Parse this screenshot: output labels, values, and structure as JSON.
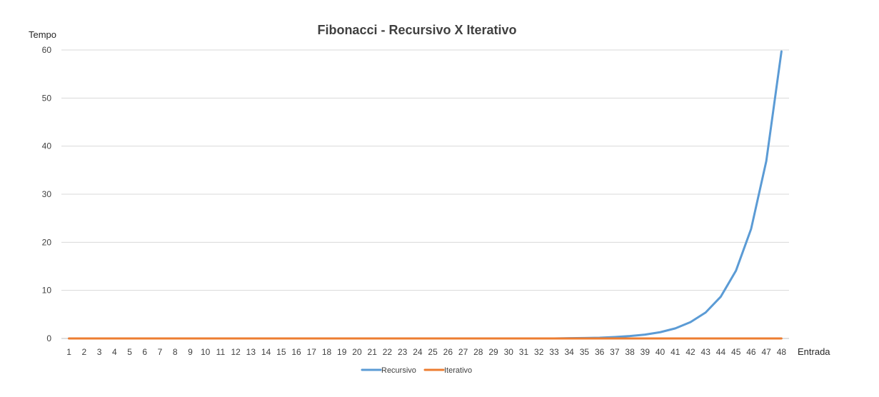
{
  "chart_data": {
    "type": "line",
    "title": "Fibonacci - Recursivo X Iterativo",
    "xlabel": "Entrada",
    "ylabel": "Tempo",
    "ylim": [
      0,
      60
    ],
    "yticks": [
      0,
      10,
      20,
      30,
      40,
      50,
      60
    ],
    "grid": true,
    "legend_position": "bottom",
    "categories": [
      "1",
      "2",
      "3",
      "4",
      "5",
      "6",
      "7",
      "8",
      "9",
      "10",
      "11",
      "12",
      "13",
      "14",
      "15",
      "16",
      "17",
      "18",
      "19",
      "20",
      "21",
      "22",
      "23",
      "24",
      "25",
      "26",
      "27",
      "28",
      "29",
      "30",
      "31",
      "32",
      "33",
      "34",
      "35",
      "36",
      "37",
      "38",
      "39",
      "40",
      "41",
      "42",
      "43",
      "44",
      "45",
      "46",
      "47",
      "48"
    ],
    "series": [
      {
        "name": "Recursivo",
        "color": "#5B9BD5",
        "values": [
          0,
          0,
          0,
          0,
          0,
          0,
          0,
          0,
          0,
          0,
          0,
          0,
          0,
          0,
          0,
          0,
          0,
          0,
          0,
          0,
          0,
          0,
          0,
          0,
          0,
          0,
          0,
          0,
          0,
          0,
          0,
          0,
          0,
          0.05,
          0.1,
          0.15,
          0.3,
          0.5,
          0.8,
          1.3,
          2.1,
          3.4,
          5.4,
          8.7,
          14.1,
          22.8,
          36.9,
          59.7
        ]
      },
      {
        "name": "Iterativo",
        "color": "#ED7D31",
        "values": [
          0,
          0,
          0,
          0,
          0,
          0,
          0,
          0,
          0,
          0,
          0,
          0,
          0,
          0,
          0,
          0,
          0,
          0,
          0,
          0,
          0,
          0,
          0,
          0,
          0,
          0,
          0,
          0,
          0,
          0,
          0,
          0,
          0,
          0,
          0,
          0,
          0,
          0,
          0,
          0,
          0,
          0,
          0,
          0,
          0,
          0,
          0,
          0
        ]
      }
    ]
  }
}
